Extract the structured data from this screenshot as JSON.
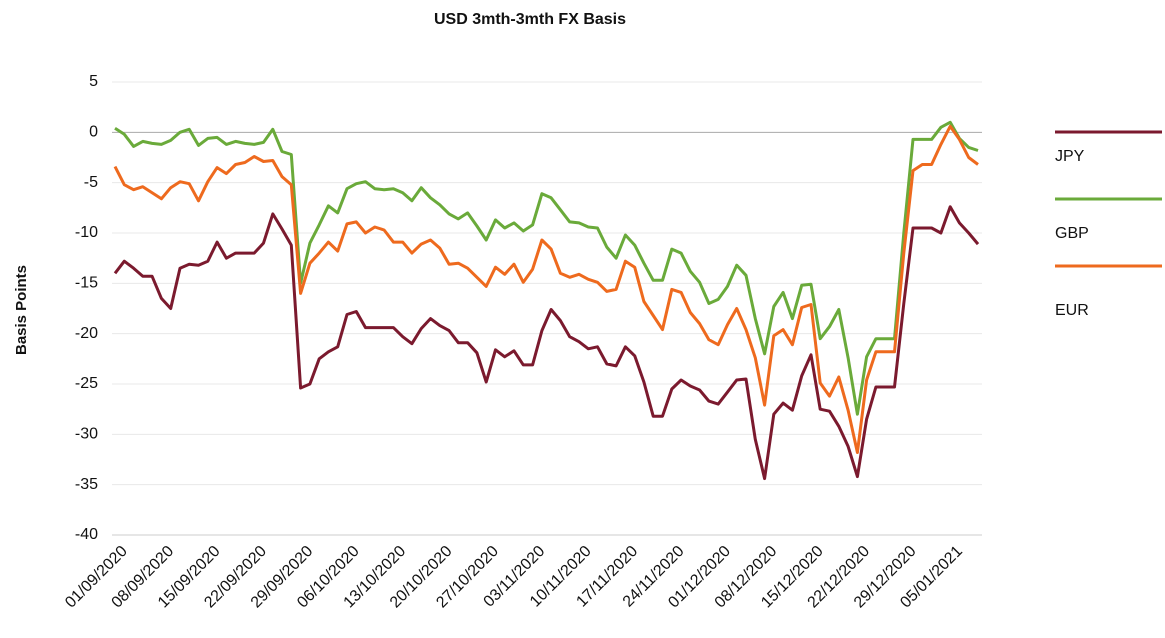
{
  "chart_data": {
    "type": "line",
    "title": "USD 3mth-3mth FX Basis",
    "y_label": "Basis Points",
    "categories": [
      "01/09/2020",
      null,
      null,
      null,
      null,
      "08/09/2020",
      null,
      null,
      null,
      null,
      "15/09/2020",
      null,
      null,
      null,
      null,
      "22/09/2020",
      null,
      null,
      null,
      null,
      "29/09/2020",
      null,
      null,
      null,
      null,
      "06/10/2020",
      null,
      null,
      null,
      null,
      "13/10/2020",
      null,
      null,
      null,
      null,
      "20/10/2020",
      null,
      null,
      null,
      null,
      "27/10/2020",
      null,
      null,
      null,
      null,
      "03/11/2020",
      null,
      null,
      null,
      null,
      "10/11/2020",
      null,
      null,
      null,
      null,
      "17/11/2020",
      null,
      null,
      null,
      null,
      "24/11/2020",
      null,
      null,
      null,
      null,
      "01/12/2020",
      null,
      null,
      null,
      null,
      "08/12/2020",
      null,
      null,
      null,
      null,
      "15/12/2020",
      null,
      null,
      null,
      null,
      "22/12/2020",
      null,
      null,
      null,
      null,
      "29/12/2020",
      null,
      null,
      null,
      null,
      "05/01/2021",
      null,
      null,
      null
    ],
    "series": [
      {
        "name": "JPY",
        "color": "#7b1a2e",
        "values": [
          -14,
          -12.8,
          -13.5,
          -14.3,
          -14.3,
          -16.5,
          -17.5,
          -13.5,
          -13.1,
          -13.2,
          -12.8,
          -10.9,
          -12.5,
          -12,
          -12,
          -12,
          -11,
          -8.1,
          -9.6,
          -11.2,
          -25.4,
          -25,
          -22.5,
          -21.8,
          -21.3,
          -18.1,
          -17.8,
          -19.4,
          -19.4,
          -19.4,
          -19.4,
          -20.3,
          -21,
          -19.5,
          -18.5,
          -19.2,
          -19.7,
          -20.9,
          -20.9,
          -21.9,
          -24.8,
          -21.6,
          -22.3,
          -21.7,
          -23.1,
          -23.1,
          -19.7,
          -17.6,
          -18.7,
          -20.3,
          -20.8,
          -21.5,
          -21.3,
          -23,
          -23.2,
          -21.3,
          -22.2,
          -24.8,
          -28.2,
          -28.2,
          -25.5,
          -24.6,
          -25.2,
          -25.6,
          -26.7,
          -27,
          -25.8,
          -24.6,
          -24.5,
          -30.5,
          -34.4,
          -28,
          -26.9,
          -27.6,
          -24.2,
          -22.1,
          -27.5,
          -27.7,
          -29.2,
          -31.2,
          -34.2,
          -28.5,
          -25.3,
          -25.3,
          -25.3,
          -17,
          -9.5,
          -9.5,
          -9.5,
          -10,
          -7.4,
          -9,
          -10,
          -11.1
        ]
      },
      {
        "name": "GBP",
        "color": "#6aaa3a",
        "values": [
          0.4,
          -0.2,
          -1.4,
          -0.9,
          -1.1,
          -1.2,
          -0.8,
          0,
          0.3,
          -1.3,
          -0.6,
          -0.5,
          -1.2,
          -0.9,
          -1.1,
          -1.2,
          -1,
          0.3,
          -1.9,
          -2.2,
          -15,
          -11,
          -9.2,
          -7.3,
          -8,
          -5.6,
          -5.1,
          -4.9,
          -5.6,
          -5.7,
          -5.6,
          -6,
          -6.8,
          -5.5,
          -6.5,
          -7.2,
          -8.1,
          -8.6,
          -8,
          -9.3,
          -10.7,
          -8.7,
          -9.5,
          -9,
          -9.8,
          -9.2,
          -6.1,
          -6.5,
          -7.7,
          -8.9,
          -9,
          -9.4,
          -9.5,
          -11.4,
          -12.5,
          -10.2,
          -11.2,
          -13,
          -14.7,
          -14.7,
          -11.6,
          -12,
          -13.8,
          -14.9,
          -17,
          -16.6,
          -15.3,
          -13.2,
          -14.2,
          -18.5,
          -22,
          -17.3,
          -15.9,
          -18.5,
          -15.2,
          -15.1,
          -20.5,
          -19.3,
          -17.6,
          -22.4,
          -28,
          -22.3,
          -20.5,
          -20.5,
          -20.5,
          -10,
          -0.7,
          -0.7,
          -0.7,
          0.5,
          1,
          -0.6,
          -1.5,
          -1.8
        ]
      },
      {
        "name": "EUR",
        "color": "#ee6a1e",
        "values": [
          -3.4,
          -5.2,
          -5.7,
          -5.4,
          -6,
          -6.6,
          -5.5,
          -4.9,
          -5.1,
          -6.8,
          -4.9,
          -3.5,
          -4.1,
          -3.2,
          -3,
          -2.4,
          -2.9,
          -2.8,
          -4.4,
          -5.2,
          -16,
          -13,
          -12,
          -10.9,
          -11.8,
          -9.1,
          -8.9,
          -10,
          -9.4,
          -9.7,
          -10.9,
          -10.9,
          -12,
          -11.1,
          -10.7,
          -11.5,
          -13.1,
          -13,
          -13.5,
          -14.4,
          -15.3,
          -13.4,
          -14.1,
          -13.1,
          -14.9,
          -13.6,
          -10.7,
          -11.6,
          -14,
          -14.4,
          -14.1,
          -14.6,
          -14.9,
          -15.8,
          -15.6,
          -12.8,
          -13.4,
          -16.8,
          -18.2,
          -19.6,
          -15.6,
          -15.9,
          -17.9,
          -19,
          -20.6,
          -21.1,
          -19.1,
          -17.5,
          -19.6,
          -22.4,
          -27.1,
          -20.2,
          -19.6,
          -21.1,
          -17.4,
          -17.1,
          -24.9,
          -26.2,
          -24.3,
          -27.6,
          -31.8,
          -24.6,
          -21.8,
          -21.8,
          -21.8,
          -12,
          -3.8,
          -3.2,
          -3.2,
          -1.2,
          0.6,
          -0.7,
          -2.5,
          -3.2
        ]
      }
    ],
    "ylim": [
      -40,
      5
    ],
    "yticks": [
      -40,
      -35,
      -30,
      -25,
      -20,
      -15,
      -10,
      -5,
      0,
      5
    ],
    "grid": true,
    "legend": "right"
  }
}
